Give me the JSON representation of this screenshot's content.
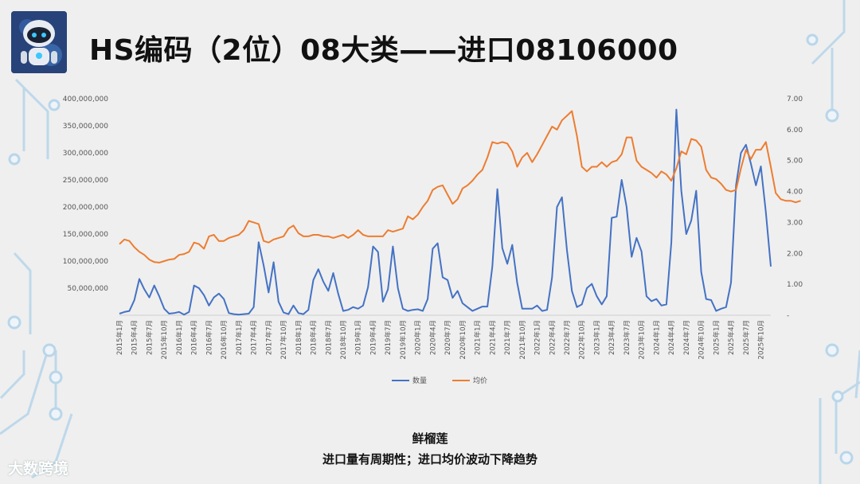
{
  "page": {
    "title": "HS编码（2位）08大类——进口08106000",
    "caption_product": "鲜榴莲",
    "caption_note": "进口量有周期性；进口均价波动下降趋势",
    "watermark": "大数跨境"
  },
  "chart_data": {
    "type": "line",
    "title": "",
    "y_left": {
      "min": 0,
      "max": 400000000,
      "step": 50000000,
      "tick_labels": [
        "",
        "50,000,000",
        "100,000,000",
        "150,000,000",
        "200,000,000",
        "250,000,000",
        "300,000,000",
        "350,000,000",
        "400,000,000"
      ]
    },
    "y_right": {
      "min": 0,
      "max": 7,
      "step": 1,
      "tick_labels": [
        "-",
        "1.00",
        "2.00",
        "3.00",
        "4.00",
        "5.00",
        "6.00",
        "7.00"
      ]
    },
    "x_labels": [
      "2015年1月",
      "2015年4月",
      "2015年7月",
      "2015年10月",
      "2016年1月",
      "2016年4月",
      "2016年7月",
      "2016年10月",
      "2017年1月",
      "2017年4月",
      "2017年7月",
      "2017年10月",
      "2018年1月",
      "2018年4月",
      "2018年7月",
      "2018年10月",
      "2019年1月",
      "2019年4月",
      "2019年7月",
      "2019年10月",
      "2020年1月",
      "2020年4月",
      "2020年7月",
      "2020年10月",
      "2021年1月",
      "2021年4月",
      "2021年7月",
      "2021年10月",
      "2022年1月",
      "2022年4月",
      "2022年7月",
      "2022年10月",
      "2023年1月",
      "2023年4月",
      "2023年7月",
      "2023年10月",
      "2024年1月",
      "2024年4月",
      "2024年7月",
      "2024年10月",
      "2025年1月",
      "2025年4月",
      "2025年7月",
      "2025年10月"
    ],
    "series": [
      {
        "name": "数量",
        "axis": "left",
        "color": "#4472c4",
        "values": [
          3000000,
          6000000,
          8000000,
          28000000,
          67000000,
          48000000,
          33000000,
          55000000,
          35000000,
          12000000,
          3000000,
          4000000,
          6000000,
          1000000,
          6000000,
          55000000,
          50000000,
          37000000,
          18000000,
          33000000,
          40000000,
          30000000,
          4000000,
          2000000,
          1000000,
          2000000,
          3000000,
          15000000,
          135000000,
          92000000,
          42000000,
          98000000,
          25000000,
          5000000,
          2000000,
          18000000,
          4000000,
          2000000,
          10000000,
          65000000,
          85000000,
          62000000,
          45000000,
          78000000,
          40000000,
          8000000,
          10000000,
          15000000,
          12000000,
          18000000,
          52000000,
          127000000,
          117000000,
          25000000,
          48000000,
          127000000,
          50000000,
          12000000,
          8000000,
          10000000,
          11000000,
          8000000,
          30000000,
          123000000,
          133000000,
          70000000,
          65000000,
          32000000,
          45000000,
          22000000,
          15000000,
          8000000,
          12000000,
          16000000,
          16000000,
          90000000,
          233000000,
          124000000,
          95000000,
          130000000,
          60000000,
          12000000,
          12000000,
          12000000,
          18000000,
          8000000,
          10000000,
          70000000,
          200000000,
          218000000,
          120000000,
          45000000,
          15000000,
          20000000,
          50000000,
          58000000,
          35000000,
          20000000,
          35000000,
          180000000,
          182000000,
          250000000,
          200000000,
          108000000,
          143000000,
          118000000,
          35000000,
          26000000,
          30000000,
          18000000,
          20000000,
          135000000,
          380000000,
          230000000,
          150000000,
          175000000,
          230000000,
          80000000,
          30000000,
          28000000,
          8000000,
          12000000,
          15000000,
          60000000,
          240000000,
          300000000,
          315000000,
          280000000,
          240000000,
          275000000,
          190000000,
          90000000
        ]
      },
      {
        "name": "均价",
        "axis": "right",
        "color": "#ed7d31",
        "values": [
          2.3,
          2.45,
          2.4,
          2.2,
          2.05,
          1.95,
          1.8,
          1.72,
          1.7,
          1.75,
          1.8,
          1.82,
          1.95,
          1.98,
          2.05,
          2.35,
          2.3,
          2.15,
          2.55,
          2.6,
          2.4,
          2.4,
          2.5,
          2.55,
          2.6,
          2.75,
          3.05,
          3.0,
          2.95,
          2.4,
          2.35,
          2.45,
          2.5,
          2.55,
          2.8,
          2.9,
          2.65,
          2.55,
          2.55,
          2.6,
          2.6,
          2.55,
          2.55,
          2.5,
          2.55,
          2.6,
          2.5,
          2.6,
          2.75,
          2.6,
          2.55,
          2.55,
          2.55,
          2.55,
          2.75,
          2.7,
          2.75,
          2.8,
          3.2,
          3.1,
          3.25,
          3.5,
          3.7,
          4.05,
          4.15,
          4.2,
          3.9,
          3.6,
          3.75,
          4.1,
          4.2,
          4.35,
          4.55,
          4.7,
          5.1,
          5.6,
          5.55,
          5.6,
          5.55,
          5.3,
          4.8,
          5.1,
          5.25,
          4.95,
          5.2,
          5.5,
          5.8,
          6.1,
          6.0,
          6.3,
          6.45,
          6.6,
          5.8,
          4.8,
          4.65,
          4.8,
          4.8,
          4.95,
          4.8,
          4.95,
          5.0,
          5.2,
          5.75,
          5.75,
          5.0,
          4.8,
          4.7,
          4.6,
          4.45,
          4.65,
          4.55,
          4.35,
          4.75,
          5.3,
          5.2,
          5.7,
          5.65,
          5.45,
          4.7,
          4.45,
          4.4,
          4.25,
          4.05,
          4.0,
          4.05,
          4.75,
          5.35,
          5.05,
          5.35,
          5.35,
          5.6,
          4.8,
          3.95,
          3.75,
          3.7,
          3.7,
          3.65,
          3.7
        ]
      }
    ],
    "legend": {
      "placement": "bottom-center",
      "entries": [
        "数量",
        "均价"
      ]
    },
    "grid": false
  }
}
